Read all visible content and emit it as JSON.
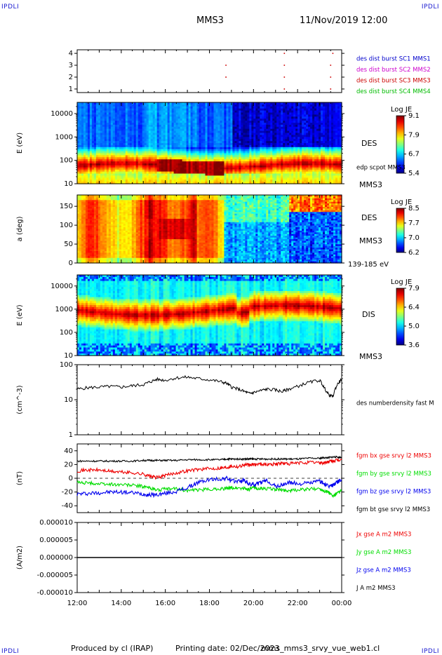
{
  "header": {
    "left_corner": "IPDLI",
    "right_corner": "IPDLI",
    "spacecraft": "MMS3",
    "datetime": "11/Nov/2019 12:00"
  },
  "footer": {
    "produced_by": "Produced by cl (IRAP)",
    "printing_date": "Printing date: 02/Dec/2023",
    "product_name": "mms_mms3_srvy_vue_web1.cl",
    "left_corner": "IPDLI",
    "right_corner": "IPDLI"
  },
  "colors": {
    "mms1": "#0000cc",
    "mms2": "#cc00cc",
    "mms3": "#cc0000",
    "mms4": "#00bb00",
    "bx": "#ee0000",
    "by": "#00dd00",
    "bz": "#0000ee",
    "bt": "#000000",
    "spectrogram_scale": [
      "#00007f",
      "#0000ff",
      "#0080ff",
      "#00ffff",
      "#80ff80",
      "#ffff00",
      "#ff8000",
      "#ff0000",
      "#7f0000"
    ]
  },
  "chart_data": [
    {
      "type": "scatter",
      "panel": "burst-availability",
      "yticks": [
        "1",
        "2",
        "3",
        "4"
      ],
      "ylim": [
        0.7,
        4.3
      ],
      "legend": [
        {
          "text": "des dist burst SC1 MMS1",
          "color_key": "mms1"
        },
        {
          "text": "des dist burst SC2 MMS2",
          "color_key": "mms2"
        },
        {
          "text": "des dist burst SC3 MMS3",
          "color_key": "mms3"
        },
        {
          "text": "des dist burst SC4 MMS4",
          "color_key": "mms4"
        }
      ],
      "points": [
        {
          "x": 18.75,
          "y": 3,
          "sc": "mms3"
        },
        {
          "x": 18.75,
          "y": 2,
          "sc": "mms3"
        },
        {
          "x": 21.4,
          "y": 3,
          "sc": "mms3"
        },
        {
          "x": 21.4,
          "y": 2,
          "sc": "mms3"
        },
        {
          "x": 23.5,
          "y": 3,
          "sc": "mms3"
        },
        {
          "x": 23.5,
          "y": 2,
          "sc": "mms3"
        },
        {
          "x": 23.6,
          "y": 4,
          "sc": "mms3"
        },
        {
          "x": 21.4,
          "y": 4,
          "sc": "mms3"
        },
        {
          "x": 21.4,
          "y": 1,
          "sc": "mms3"
        },
        {
          "x": 23.5,
          "y": 1,
          "sc": "mms3"
        }
      ]
    },
    {
      "type": "heatmap",
      "panel": "des-energy",
      "ylabel": "E (eV)",
      "yscale": "log",
      "ylim": [
        10,
        30000
      ],
      "yticks": [
        "10",
        "100",
        "1000",
        "10000"
      ],
      "colorbar": {
        "title": "Log JE",
        "ticks": [
          "9.1",
          "7.9",
          "6.7",
          "5.4"
        ],
        "range": [
          5.4,
          9.1
        ]
      },
      "labels": [
        "DES",
        "edp scpot MMS3",
        "MMS3"
      ]
    },
    {
      "type": "heatmap",
      "panel": "des-pitch-angle",
      "ylabel": "a (deg)",
      "ylim": [
        0,
        180
      ],
      "yticks": [
        "0",
        "50",
        "100",
        "150"
      ],
      "colorbar": {
        "title": "Log JE",
        "ticks": [
          "8.5",
          "7.7",
          "7.0",
          "6.2"
        ],
        "range": [
          6.2,
          8.5
        ]
      },
      "labels": [
        "DES",
        "MMS3",
        "139-185 eV"
      ]
    },
    {
      "type": "heatmap",
      "panel": "dis-energy",
      "ylabel": "E (eV)",
      "yscale": "log",
      "ylim": [
        10,
        30000
      ],
      "yticks": [
        "10",
        "100",
        "1000",
        "10000"
      ],
      "colorbar": {
        "title": "Log JE",
        "ticks": [
          "7.9",
          "6.4",
          "5.0",
          "3.6"
        ],
        "range": [
          3.6,
          7.9
        ]
      },
      "labels": [
        "DIS",
        "MMS3"
      ]
    },
    {
      "type": "line",
      "panel": "number-density",
      "ylabel": "(cm^-3)",
      "yscale": "log",
      "ylim": [
        1,
        100
      ],
      "yticks": [
        "1",
        "10",
        "100"
      ],
      "legend": [
        {
          "text": "des numberdensity fast M",
          "color_key": "bt"
        }
      ],
      "series": [
        {
          "name": "des numberdensity fast M",
          "x": [
            12.0,
            12.5,
            13.0,
            13.5,
            14.0,
            14.5,
            15.0,
            15.3,
            15.6,
            16.0,
            16.5,
            17.0,
            17.5,
            18.0,
            18.5,
            18.8,
            19.0,
            19.3,
            19.6,
            19.8,
            20.0,
            20.3,
            20.6,
            21.0,
            21.3,
            21.6,
            22.0,
            22.5,
            23.0,
            23.2,
            23.4,
            23.6,
            23.8,
            24.0
          ],
          "values": [
            20,
            22,
            23,
            24,
            23,
            25,
            27,
            32,
            38,
            36,
            42,
            44,
            40,
            37,
            33,
            29,
            23,
            20,
            17,
            15,
            16,
            18,
            20,
            19,
            17,
            20,
            24,
            31,
            36,
            22,
            14,
            12,
            27,
            38
          ]
        }
      ]
    },
    {
      "type": "line",
      "panel": "magnetic-field",
      "ylabel": "(nT)",
      "ylim": [
        -50,
        50
      ],
      "yticks": [
        "-40",
        "-20",
        "0",
        "20",
        "40"
      ],
      "legend": [
        {
          "text": "fgm bx gse srvy l2 MMS3",
          "color_key": "bx"
        },
        {
          "text": "fgm by gse srvy l2 MMS3",
          "color_key": "by"
        },
        {
          "text": "fgm bz gse srvy l2 MMS3",
          "color_key": "bz"
        },
        {
          "text": "fgm bt gse srvy l2 MMS3",
          "color_key": "bt"
        }
      ],
      "x": [
        12.0,
        12.5,
        13.0,
        13.5,
        14.0,
        14.5,
        15.0,
        15.3,
        15.6,
        16.0,
        16.5,
        17.0,
        17.5,
        18.0,
        18.5,
        18.8,
        19.0,
        19.3,
        19.6,
        19.8,
        20.0,
        20.3,
        20.6,
        21.0,
        21.3,
        21.6,
        22.0,
        22.5,
        23.0,
        23.2,
        23.4,
        23.6,
        23.8,
        24.0
      ],
      "series": [
        {
          "name": "fgm bx gse srvy l2 MMS3",
          "color_key": "bx",
          "values": [
            11,
            12,
            12,
            10,
            9,
            8,
            6,
            3,
            1,
            4,
            8,
            11,
            13,
            14,
            15,
            16,
            18,
            17,
            20,
            19,
            20,
            21,
            20,
            21,
            22,
            21,
            22,
            23,
            23,
            22,
            24,
            25,
            26,
            27
          ]
        },
        {
          "name": "fgm by gse srvy l2 MMS3",
          "color_key": "by",
          "values": [
            -6,
            -7,
            -8,
            -9,
            -9,
            -10,
            -12,
            -14,
            -17,
            -16,
            -15,
            -18,
            -17,
            -16,
            -15,
            -15,
            -14,
            -14,
            -15,
            -16,
            -14,
            -15,
            -15,
            -16,
            -17,
            -18,
            -17,
            -16,
            -15,
            -18,
            -20,
            -26,
            -22,
            -18
          ]
        },
        {
          "name": "fgm bz gse srvy l2 MMS3",
          "color_key": "bz",
          "values": [
            -23,
            -22,
            -21,
            -20,
            -20,
            -21,
            -23,
            -24,
            -24,
            -22,
            -19,
            -14,
            -6,
            -2,
            -1,
            0,
            -4,
            -4,
            -3,
            -9,
            -9,
            -7,
            -3,
            -12,
            -10,
            -6,
            -8,
            -7,
            -4,
            -8,
            -12,
            -10,
            -5,
            -2
          ]
        },
        {
          "name": "fgm bt gse srvy l2 MMS3",
          "color_key": "bt",
          "values": [
            25,
            25,
            25,
            25,
            25,
            25,
            26,
            26,
            26,
            26,
            26,
            27,
            27,
            27,
            27,
            28,
            28,
            28,
            28,
            28,
            28,
            28,
            28,
            28,
            28,
            28,
            28,
            29,
            29,
            30,
            30,
            31,
            31,
            30
          ]
        }
      ]
    },
    {
      "type": "line",
      "panel": "current-density",
      "ylabel": "(A/m2)",
      "ylim": [
        -1e-05,
        1e-05
      ],
      "yticks": [
        "-0.000010",
        "-0.000005",
        "0.000000",
        "0.000005",
        "0.000010"
      ],
      "legend": [
        {
          "text": "Jx gse A m2 MMS3",
          "color_key": "bx"
        },
        {
          "text": "Jy gse A m2 MMS3",
          "color_key": "by"
        },
        {
          "text": "Jz gse A m2 MMS3",
          "color_key": "bz"
        },
        {
          "text": "J A m2 MMS3",
          "color_key": "bt"
        }
      ],
      "series": [
        {
          "name": "J A m2 MMS3",
          "x": [
            12,
            24
          ],
          "values": [
            0,
            0
          ]
        }
      ]
    },
    {
      "type": "axis",
      "panel": "time-axis",
      "xlim": [
        12,
        24
      ],
      "xticks": [
        "12:00",
        "14:00",
        "16:00",
        "18:00",
        "20:00",
        "22:00",
        "00:00"
      ]
    }
  ]
}
